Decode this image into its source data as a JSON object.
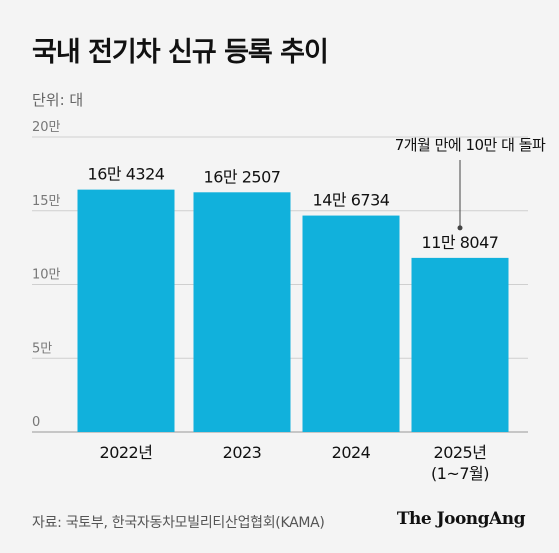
{
  "header": {
    "title": "국내 전기차 신규 등록 추이",
    "unit": "단위: 대"
  },
  "colors": {
    "bar": "#11b1dc",
    "axis_text": "#777777",
    "grid": "#cfcfcf",
    "annotation_line": "#444444"
  },
  "chart_data": {
    "type": "bar",
    "categories": [
      "2022년",
      "2023",
      "2024",
      "2025년\n(1~7월)"
    ],
    "values": [
      164324,
      162507,
      146734,
      118047
    ],
    "data_labels": [
      "16만 4324",
      "16만 2507",
      "14만 6734",
      "11만 8047"
    ],
    "y_ticks": [
      {
        "value": 0,
        "label": "0"
      },
      {
        "value": 50000,
        "label": "5만"
      },
      {
        "value": 100000,
        "label": "10만"
      },
      {
        "value": 150000,
        "label": "15만"
      },
      {
        "value": 200000,
        "label": "20만"
      }
    ],
    "ylim": [
      0,
      200000
    ],
    "grid": true,
    "annotation": {
      "text": "7개월 만에 10만 대 돌파",
      "category_index": 3
    }
  },
  "footer": {
    "source": "자료: 국토부, 한국자동차모빌리티산업협회(KAMA)",
    "logo": "The JoongAng"
  }
}
